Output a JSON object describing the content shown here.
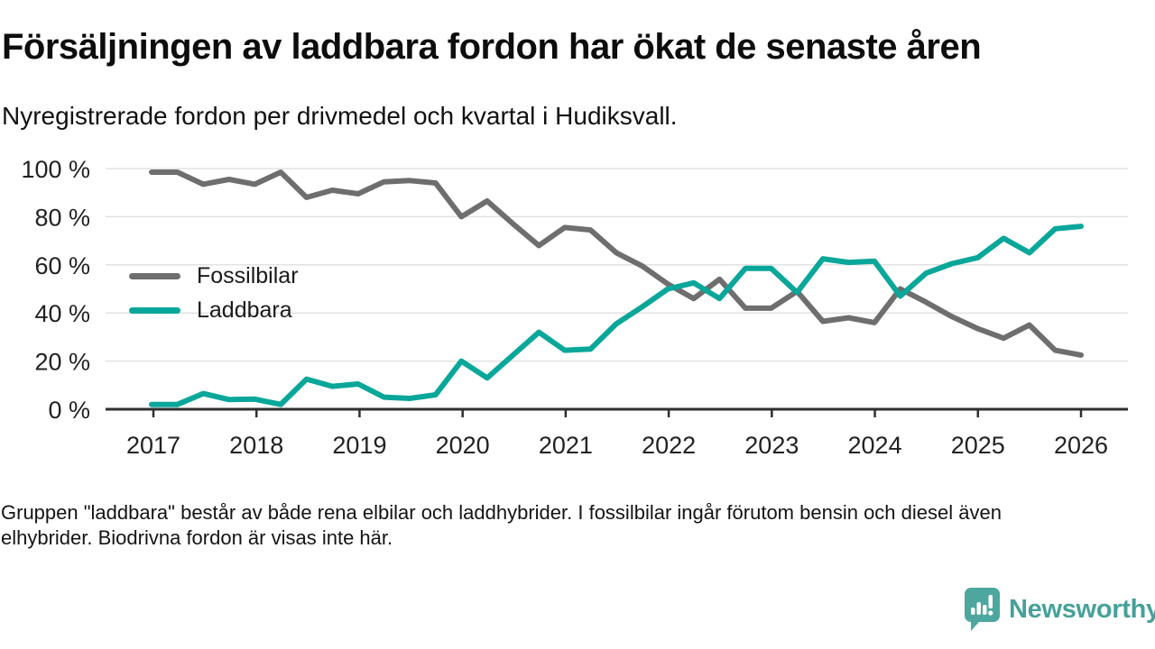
{
  "header": {
    "title": "Försäljningen av laddbara fordon har ökat de senaste åren",
    "subtitle": "Nyregistrerade fordon per drivmedel och kvartal i Hudiksvall."
  },
  "chart_data": {
    "type": "line",
    "x_unit": "quarter",
    "x_start": "2017-Q1",
    "x_end": "2026-Q1",
    "x_tick_labels": [
      "2017",
      "2018",
      "2019",
      "2020",
      "2021",
      "2022",
      "2023",
      "2024",
      "2025",
      "2026"
    ],
    "y_tick_labels": [
      "100 %",
      "80 %",
      "60 %",
      "40 %",
      "20 %",
      "0 %"
    ],
    "y_tick_values": [
      100,
      80,
      60,
      40,
      20,
      0
    ],
    "ylim": [
      0,
      100
    ],
    "grid": true,
    "grid_color": "#e2e2e2",
    "axis_color": "#2e2e2e",
    "legend_position": "inside-left",
    "series": [
      {
        "name": "Fossilbilar",
        "color": "#6e6e6e",
        "values": [
          98.5,
          98.5,
          93.5,
          95.5,
          93.5,
          98.5,
          88,
          91,
          89.5,
          94.5,
          95,
          94,
          80,
          86.5,
          77,
          68,
          75.5,
          74.5,
          65,
          59.5,
          52,
          46,
          54,
          42,
          42,
          49,
          36.5,
          38,
          36,
          50,
          44.5,
          38.5,
          33.5,
          29.5,
          35,
          24.5,
          22.5
        ]
      },
      {
        "name": "Laddbara",
        "color": "#09a79a",
        "values": [
          2,
          2,
          6.5,
          4,
          4.2,
          2,
          12.5,
          9.5,
          10.5,
          5,
          4.5,
          6,
          20,
          13,
          22.5,
          32,
          24.5,
          25,
          35.5,
          42.5,
          50,
          52.5,
          46,
          58.5,
          58.5,
          48.5,
          62.5,
          61,
          61.5,
          47,
          56.5,
          60.5,
          63,
          71,
          65,
          75,
          76
        ]
      }
    ]
  },
  "footer": {
    "note": "Gruppen \"laddbara\" består av både rena elbilar och laddhybrider. I fossilbilar ingår förutom bensin och diesel även elhybrider. Biodrivna fordon är visas inte här."
  },
  "branding": {
    "logo_text": "Newsworthy",
    "logo_color": "#4ea79f",
    "logo_text_color": "#45a19a"
  }
}
